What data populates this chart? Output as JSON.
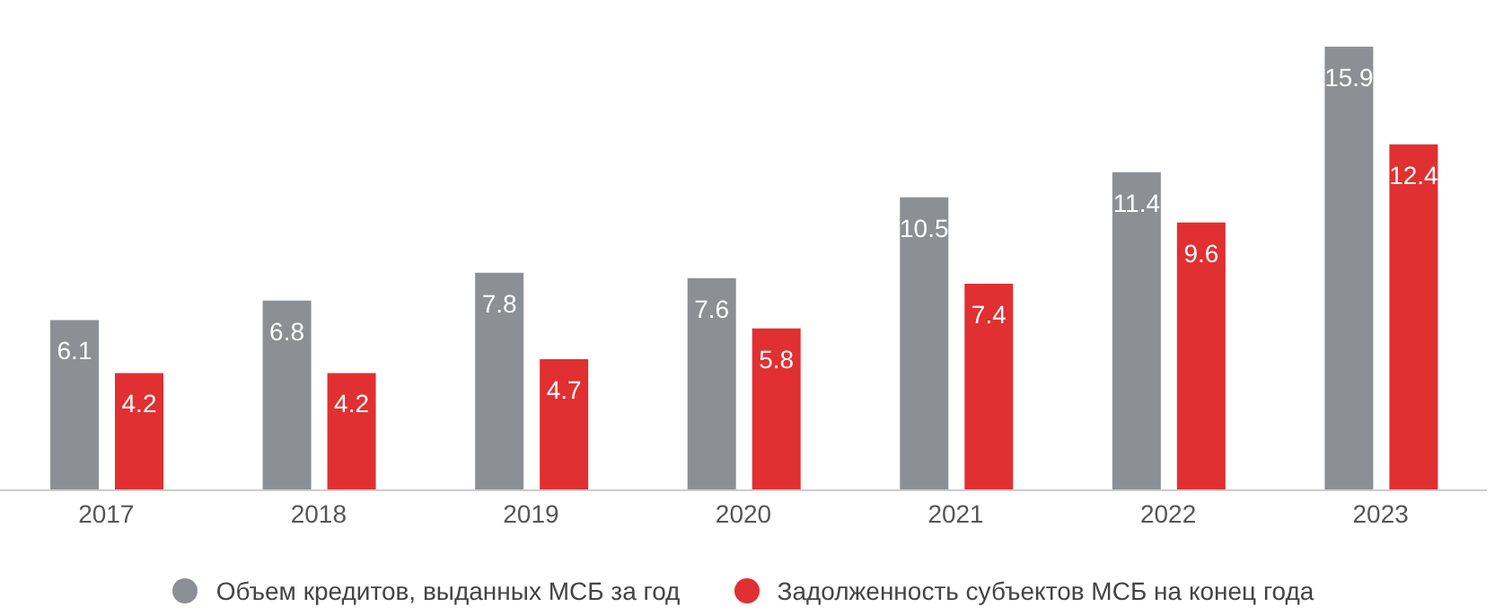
{
  "chart_data": {
    "type": "bar",
    "categories": [
      "2017",
      "2018",
      "2019",
      "2020",
      "2021",
      "2022",
      "2023"
    ],
    "series": [
      {
        "name": "Объем кредитов, выданных МСБ за год",
        "color": "#8c8f93",
        "values": [
          6.1,
          6.8,
          7.8,
          7.6,
          10.5,
          11.4,
          15.9
        ]
      },
      {
        "name": "Задолженность субъектов МСБ на конец года",
        "color": "#e03031",
        "values": [
          4.2,
          4.2,
          4.7,
          5.8,
          7.4,
          9.6,
          12.4
        ]
      }
    ],
    "data_labels": true,
    "legend": "bottom",
    "grid": false
  }
}
